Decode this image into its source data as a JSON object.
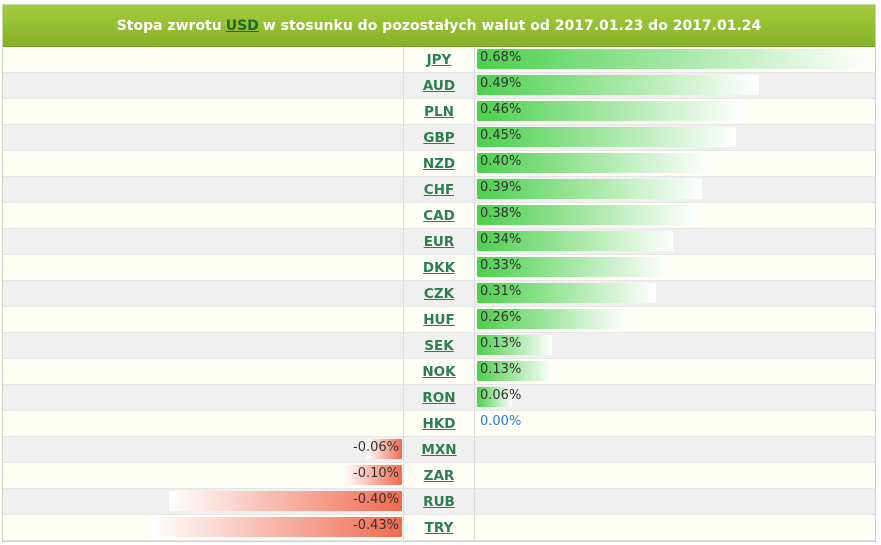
{
  "header": {
    "prefix": "Stopa zwrotu",
    "base_currency": "USD",
    "suffix": "w stosunku do pozostałych walut od 2017.01.23 do 2017.01.24"
  },
  "colors": {
    "positive": "#4cd04c",
    "negative": "#f06a50",
    "zero": "#2a7ad8",
    "header": "#96c232"
  },
  "chart_data": {
    "type": "bar",
    "categories": [
      "JPY",
      "AUD",
      "PLN",
      "GBP",
      "NZD",
      "CHF",
      "CAD",
      "EUR",
      "DKK",
      "CZK",
      "HUF",
      "SEK",
      "NOK",
      "RON",
      "HKD",
      "MXN",
      "ZAR",
      "RUB",
      "TRY"
    ],
    "values": [
      0.68,
      0.49,
      0.46,
      0.45,
      0.4,
      0.39,
      0.38,
      0.34,
      0.33,
      0.31,
      0.26,
      0.13,
      0.13,
      0.06,
      0.0,
      -0.06,
      -0.1,
      -0.4,
      -0.43
    ],
    "labels": [
      "0.68%",
      "0.49%",
      "0.46%",
      "0.45%",
      "0.40%",
      "0.39%",
      "0.38%",
      "0.34%",
      "0.33%",
      "0.31%",
      "0.26%",
      "0.13%",
      "0.13%",
      "0.06%",
      "0.00%",
      "-0.06%",
      "-0.10%",
      "-0.40%",
      "-0.43%"
    ],
    "unit": "%",
    "title": "Stopa zwrotu USD w stosunku do pozostałych walut od 2017.01.23 do 2017.01.24"
  }
}
